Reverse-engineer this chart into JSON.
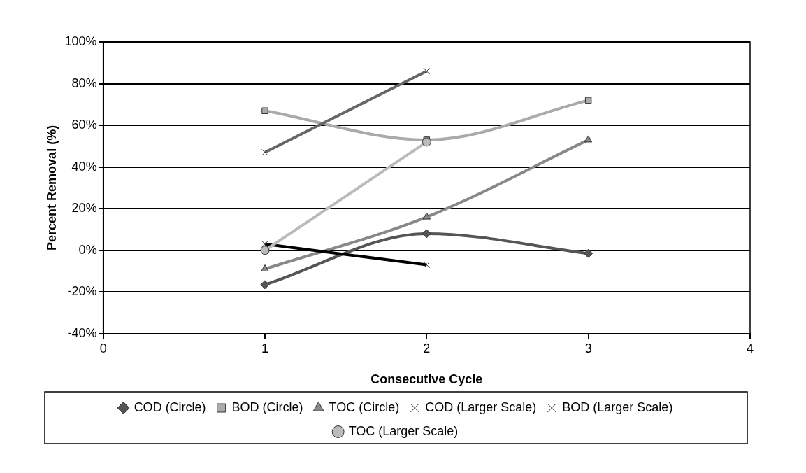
{
  "chart_data": {
    "type": "line",
    "xlabel": "Consecutive Cycle",
    "ylabel": "Percent Removal (%)",
    "xlim": [
      0,
      4
    ],
    "xticks": [
      0,
      1,
      2,
      3,
      4
    ],
    "ylim": [
      -40,
      100
    ],
    "yticks": [
      {
        "value": -40,
        "label": "-40%"
      },
      {
        "value": -20,
        "label": "-20%"
      },
      {
        "value": 0,
        "label": "0%"
      },
      {
        "value": 20,
        "label": "20%"
      },
      {
        "value": 40,
        "label": "40%"
      },
      {
        "value": 60,
        "label": "60%"
      },
      {
        "value": 80,
        "label": "80%"
      },
      {
        "value": 100,
        "label": "100%"
      }
    ],
    "grid": "y",
    "legend": "bottom",
    "line_style": "solid",
    "series": [
      {
        "name": "COD (Circle)",
        "color": "#555555",
        "marker": "diamond",
        "x": [
          1,
          2,
          3
        ],
        "values": [
          -16.5,
          8,
          -1.5
        ]
      },
      {
        "name": "BOD (Circle)",
        "color": "#aaaaaa",
        "marker": "square",
        "x": [
          1,
          2,
          3
        ],
        "values": [
          67,
          53,
          72
        ]
      },
      {
        "name": "TOC (Circle)",
        "color": "#888888",
        "marker": "triangle",
        "x": [
          1,
          2,
          3
        ],
        "values": [
          -9,
          16,
          53
        ]
      },
      {
        "name": "COD (Larger Scale)",
        "color": "#000000",
        "marker": "cross",
        "x": [
          1,
          2
        ],
        "values": [
          3,
          -7
        ]
      },
      {
        "name": "BOD (Larger Scale)",
        "color": "#666666",
        "marker": "cross",
        "x": [
          1,
          2
        ],
        "values": [
          47,
          86
        ]
      },
      {
        "name": "TOC (Larger Scale)",
        "color": "#bbbbbb",
        "marker": "circle",
        "x": [
          1,
          2
        ],
        "values": [
          0,
          52
        ]
      }
    ]
  }
}
